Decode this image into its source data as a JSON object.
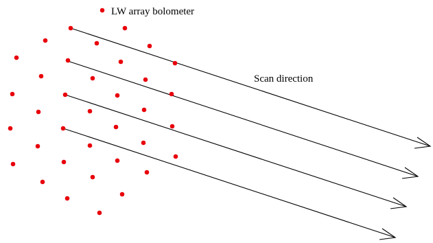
{
  "legend": {
    "marker_color": "#e8000b",
    "label": "LW array bolometer"
  },
  "scan": {
    "label": "Scan direction",
    "arrow_count": 4,
    "line_color": "#000000"
  },
  "bolometer": {
    "count": 37,
    "color": "#e8000b"
  }
}
